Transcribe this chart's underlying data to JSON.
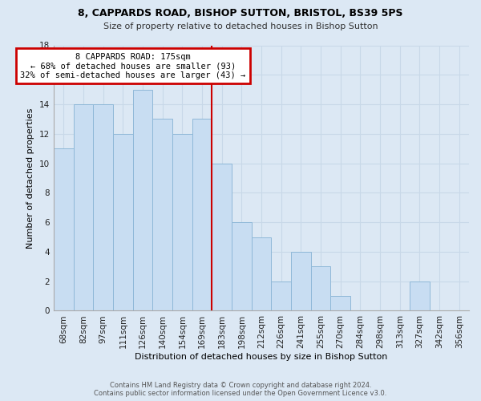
{
  "title": "8, CAPPARDS ROAD, BISHOP SUTTON, BRISTOL, BS39 5PS",
  "subtitle": "Size of property relative to detached houses in Bishop Sutton",
  "xlabel": "Distribution of detached houses by size in Bishop Sutton",
  "ylabel": "Number of detached properties",
  "footer_line1": "Contains HM Land Registry data © Crown copyright and database right 2024.",
  "footer_line2": "Contains public sector information licensed under the Open Government Licence v3.0.",
  "bar_labels": [
    "68sqm",
    "82sqm",
    "97sqm",
    "111sqm",
    "126sqm",
    "140sqm",
    "154sqm",
    "169sqm",
    "183sqm",
    "198sqm",
    "212sqm",
    "226sqm",
    "241sqm",
    "255sqm",
    "270sqm",
    "284sqm",
    "298sqm",
    "313sqm",
    "327sqm",
    "342sqm",
    "356sqm"
  ],
  "bar_values": [
    11,
    14,
    14,
    12,
    15,
    13,
    12,
    13,
    10,
    6,
    5,
    2,
    4,
    3,
    1,
    0,
    0,
    0,
    2,
    0,
    0
  ],
  "bar_color": "#c8ddf2",
  "bar_edge_color": "#8fb8d8",
  "ylim": [
    0,
    18
  ],
  "yticks": [
    0,
    2,
    4,
    6,
    8,
    10,
    12,
    14,
    16,
    18
  ],
  "annotation_text_line1": "8 CAPPARDS ROAD: 175sqm",
  "annotation_text_line2": "← 68% of detached houses are smaller (93)",
  "annotation_text_line3": "32% of semi-detached houses are larger (43) →",
  "annotation_box_color": "#ffffff",
  "annotation_box_edge_color": "#cc0000",
  "ref_line_color": "#cc0000",
  "grid_color": "#c8d8e8",
  "background_color": "#dce8f4",
  "title_fontsize": 9,
  "subtitle_fontsize": 8,
  "xlabel_fontsize": 8,
  "ylabel_fontsize": 8,
  "tick_fontsize": 7.5,
  "footer_fontsize": 6,
  "annot_fontsize": 7.5,
  "ref_line_x": 7.5
}
